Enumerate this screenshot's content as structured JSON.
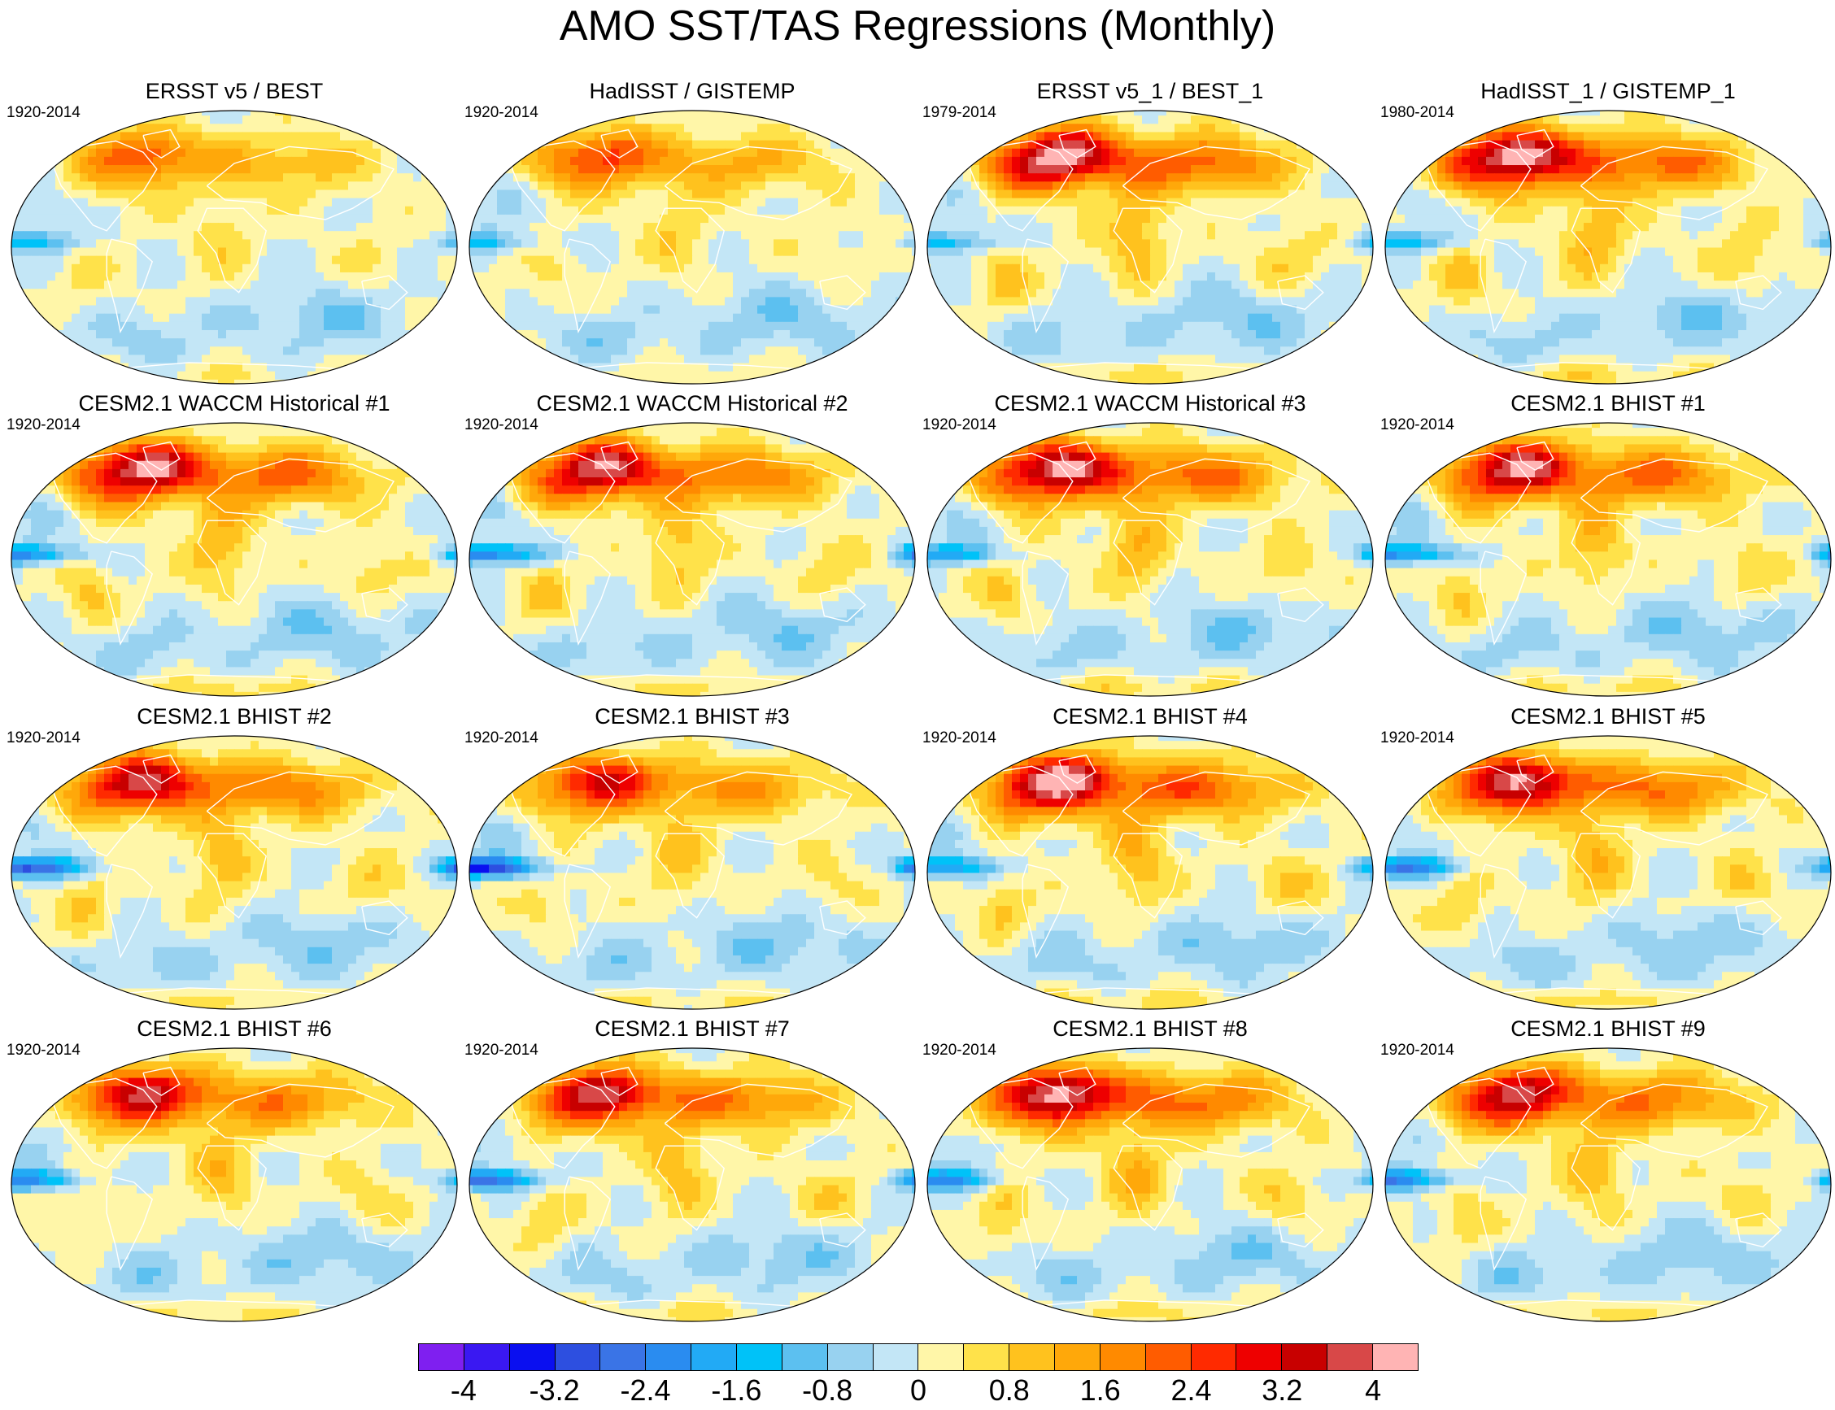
{
  "figure": {
    "title": "AMO SST/TAS Regressions (Monthly)"
  },
  "colors": {
    "boxes": [
      "#7f1ff0",
      "#3a18f2",
      "#0a0ff0",
      "#2d4fe0",
      "#3a74e6",
      "#2a8cf0",
      "#22aaf5",
      "#00c2f8",
      "#5cc0f0",
      "#98d2f0",
      "#c3e6f6",
      "#fff6a8",
      "#ffe24a",
      "#ffc21e",
      "#ffa80a",
      "#ff8a00",
      "#ff5c00",
      "#ff2a00",
      "#ee0000",
      "#c80000",
      "#d84848",
      "#ffb4b4"
    ],
    "coast": "#ffffff",
    "frame": "#000000"
  },
  "colorbar": {
    "tick_labels": [
      "-4",
      "-3.2",
      "-2.4",
      "-1.6",
      "-0.8",
      "0",
      "0.8",
      "1.6",
      "2.4",
      "3.2",
      "4"
    ],
    "tick_values": [
      -4,
      -3.2,
      -2.4,
      -1.6,
      -0.8,
      0,
      0.8,
      1.6,
      2.4,
      3.2,
      4
    ],
    "min": -4.4,
    "max": 4.4
  },
  "panels": [
    {
      "title": "ERSST v5 / BEST",
      "period": "1920-2014",
      "amp": 0.55,
      "pac": -1.4
    },
    {
      "title": "HadISST / GISTEMP",
      "period": "1920-2014",
      "amp": 0.6,
      "pac": -1.2
    },
    {
      "title": "ERSST v5_1 / BEST_1",
      "period": "1979-2014",
      "amp": 1.05,
      "pac": -1.6
    },
    {
      "title": "HadISST_1 / GISTEMP_1",
      "period": "1980-2014",
      "amp": 1.05,
      "pac": -1.4
    },
    {
      "title": "CESM2.1 WACCM Historical #1",
      "period": "1920-2014",
      "amp": 1.0,
      "pac": -2.2
    },
    {
      "title": "CESM2.1 WACCM Historical #2",
      "period": "1920-2014",
      "amp": 0.95,
      "pac": -2.6
    },
    {
      "title": "CESM2.1 WACCM Historical #3",
      "period": "1920-2014",
      "amp": 1.0,
      "pac": -1.9
    },
    {
      "title": "CESM2.1 BHIST #1",
      "period": "1920-2014",
      "amp": 0.95,
      "pac": -2.2
    },
    {
      "title": "CESM2.1 BHIST #2",
      "period": "1920-2014",
      "amp": 0.9,
      "pac": -3.1
    },
    {
      "title": "CESM2.1 BHIST #3",
      "period": "1920-2014",
      "amp": 0.75,
      "pac": -3.3
    },
    {
      "title": "CESM2.1 BHIST #4",
      "period": "1920-2014",
      "amp": 1.05,
      "pac": -2.0
    },
    {
      "title": "CESM2.1 BHIST #5",
      "period": "1920-2014",
      "amp": 0.95,
      "pac": -2.4
    },
    {
      "title": "CESM2.1 BHIST #6",
      "period": "1920-2014",
      "amp": 0.85,
      "pac": -2.1
    },
    {
      "title": "CESM2.1 BHIST #7",
      "period": "1920-2014",
      "amp": 0.9,
      "pac": -2.6
    },
    {
      "title": "CESM2.1 BHIST #8",
      "period": "1920-2014",
      "amp": 1.0,
      "pac": -2.1
    },
    {
      "title": "CESM2.1 BHIST #9",
      "period": "1920-2014",
      "amp": 0.9,
      "pac": -2.3
    }
  ]
}
